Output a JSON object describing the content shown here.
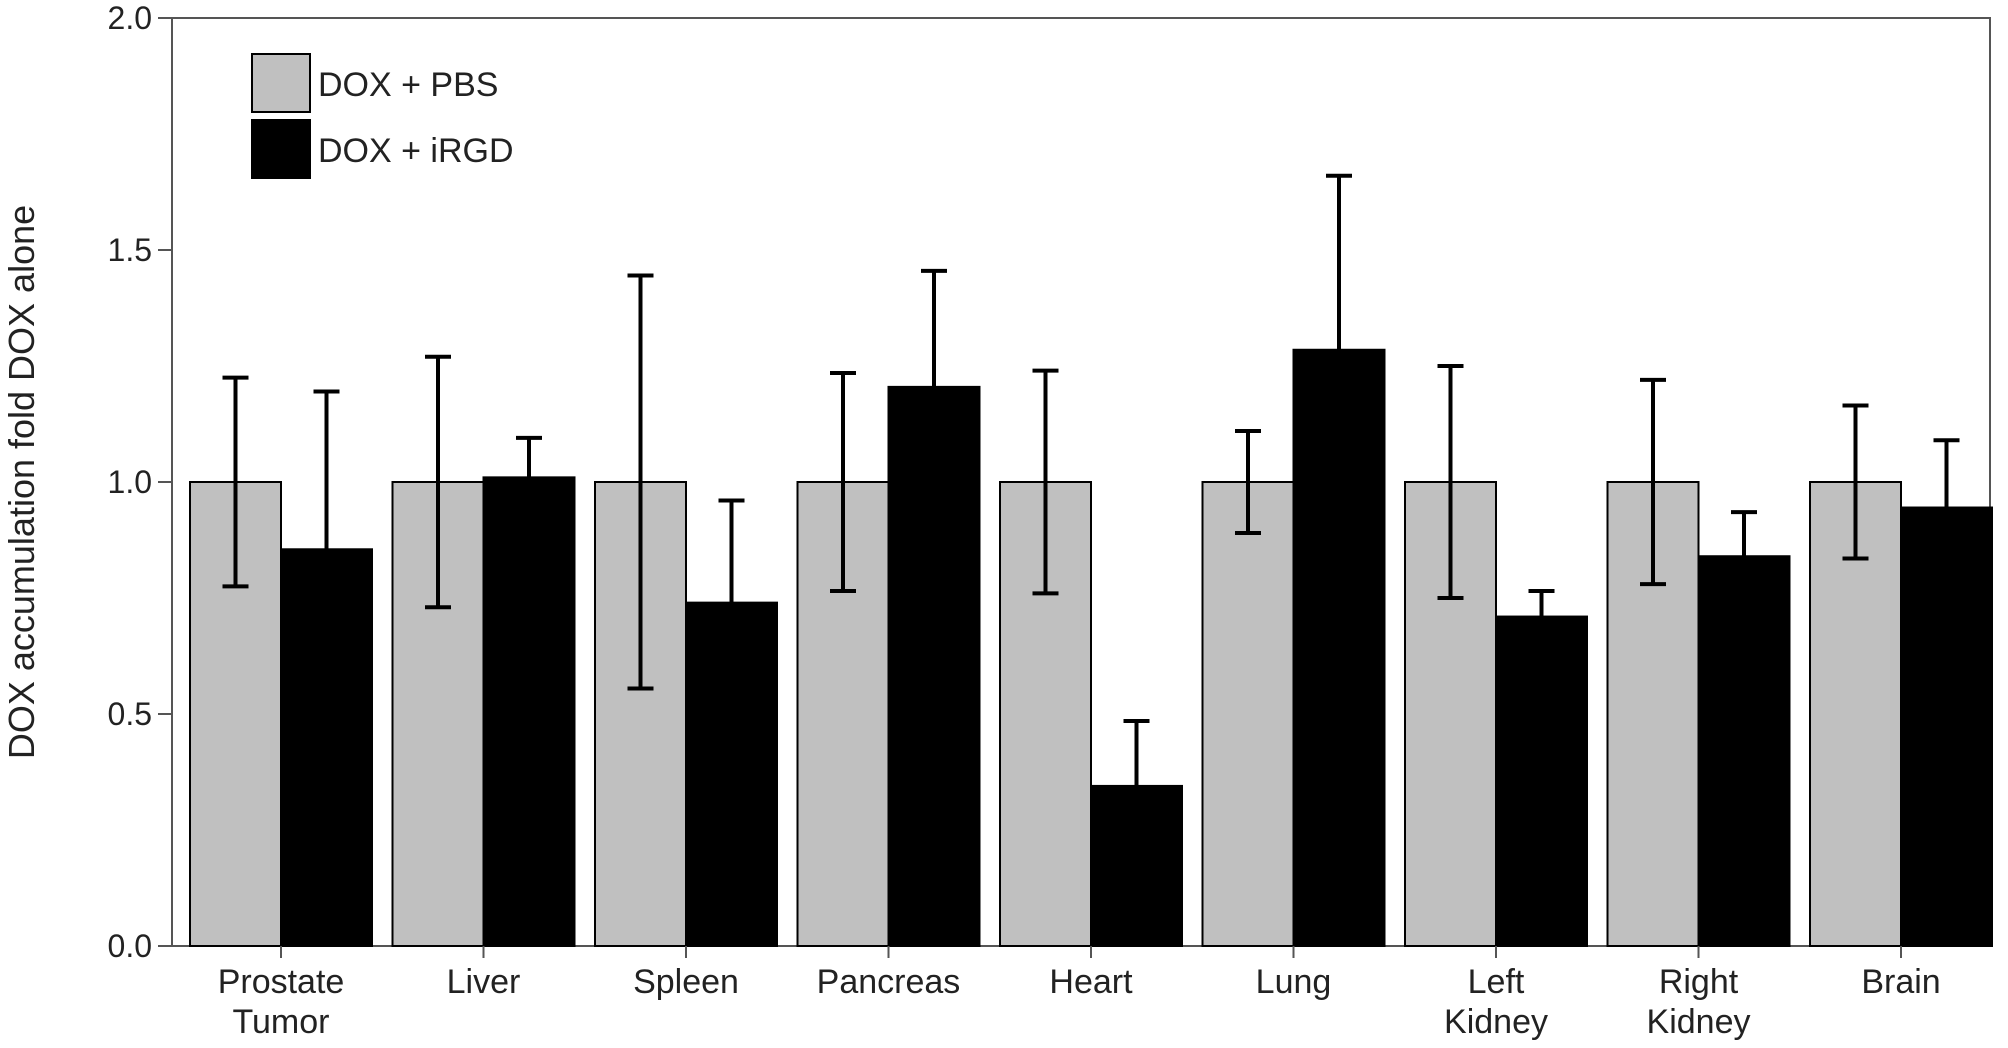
{
  "chart_data": {
    "type": "bar",
    "title": "",
    "xlabel": "",
    "ylabel": "DOX accumulation fold DOX alone",
    "ylim": [
      0,
      2
    ],
    "yticks": [
      "0.0",
      "0.5",
      "1.0",
      "1.5",
      "2.0"
    ],
    "ytick_values": [
      0,
      0.5,
      1.0,
      1.5,
      2.0
    ],
    "grid": false,
    "legend_position": "top-left",
    "categories": [
      [
        "Prostate",
        "Tumor"
      ],
      [
        "Liver"
      ],
      [
        "Spleen"
      ],
      [
        "Pancreas"
      ],
      [
        "Heart"
      ],
      [
        "Lung"
      ],
      [
        "Left",
        "Kidney"
      ],
      [
        "Right",
        "Kidney"
      ],
      [
        "Brain"
      ]
    ],
    "series": [
      {
        "name": "DOX + PBS",
        "color": "#c0c0c0",
        "values": [
          1.0,
          1.0,
          1.0,
          1.0,
          1.0,
          1.0,
          1.0,
          1.0,
          1.0
        ],
        "error_upper": [
          1.225,
          1.27,
          1.445,
          1.235,
          1.24,
          1.11,
          1.25,
          1.22,
          1.165
        ],
        "error_lower": [
          0.775,
          0.73,
          0.555,
          0.765,
          0.76,
          0.89,
          0.75,
          0.78,
          0.835
        ]
      },
      {
        "name": "DOX + iRGD",
        "color": "#000000",
        "values": [
          0.855,
          1.01,
          0.74,
          1.205,
          0.345,
          1.285,
          0.71,
          0.84,
          0.945
        ],
        "error_upper": [
          1.195,
          1.095,
          0.96,
          1.455,
          0.485,
          1.66,
          0.765,
          0.935,
          1.09
        ],
        "error_lower": null
      }
    ]
  }
}
